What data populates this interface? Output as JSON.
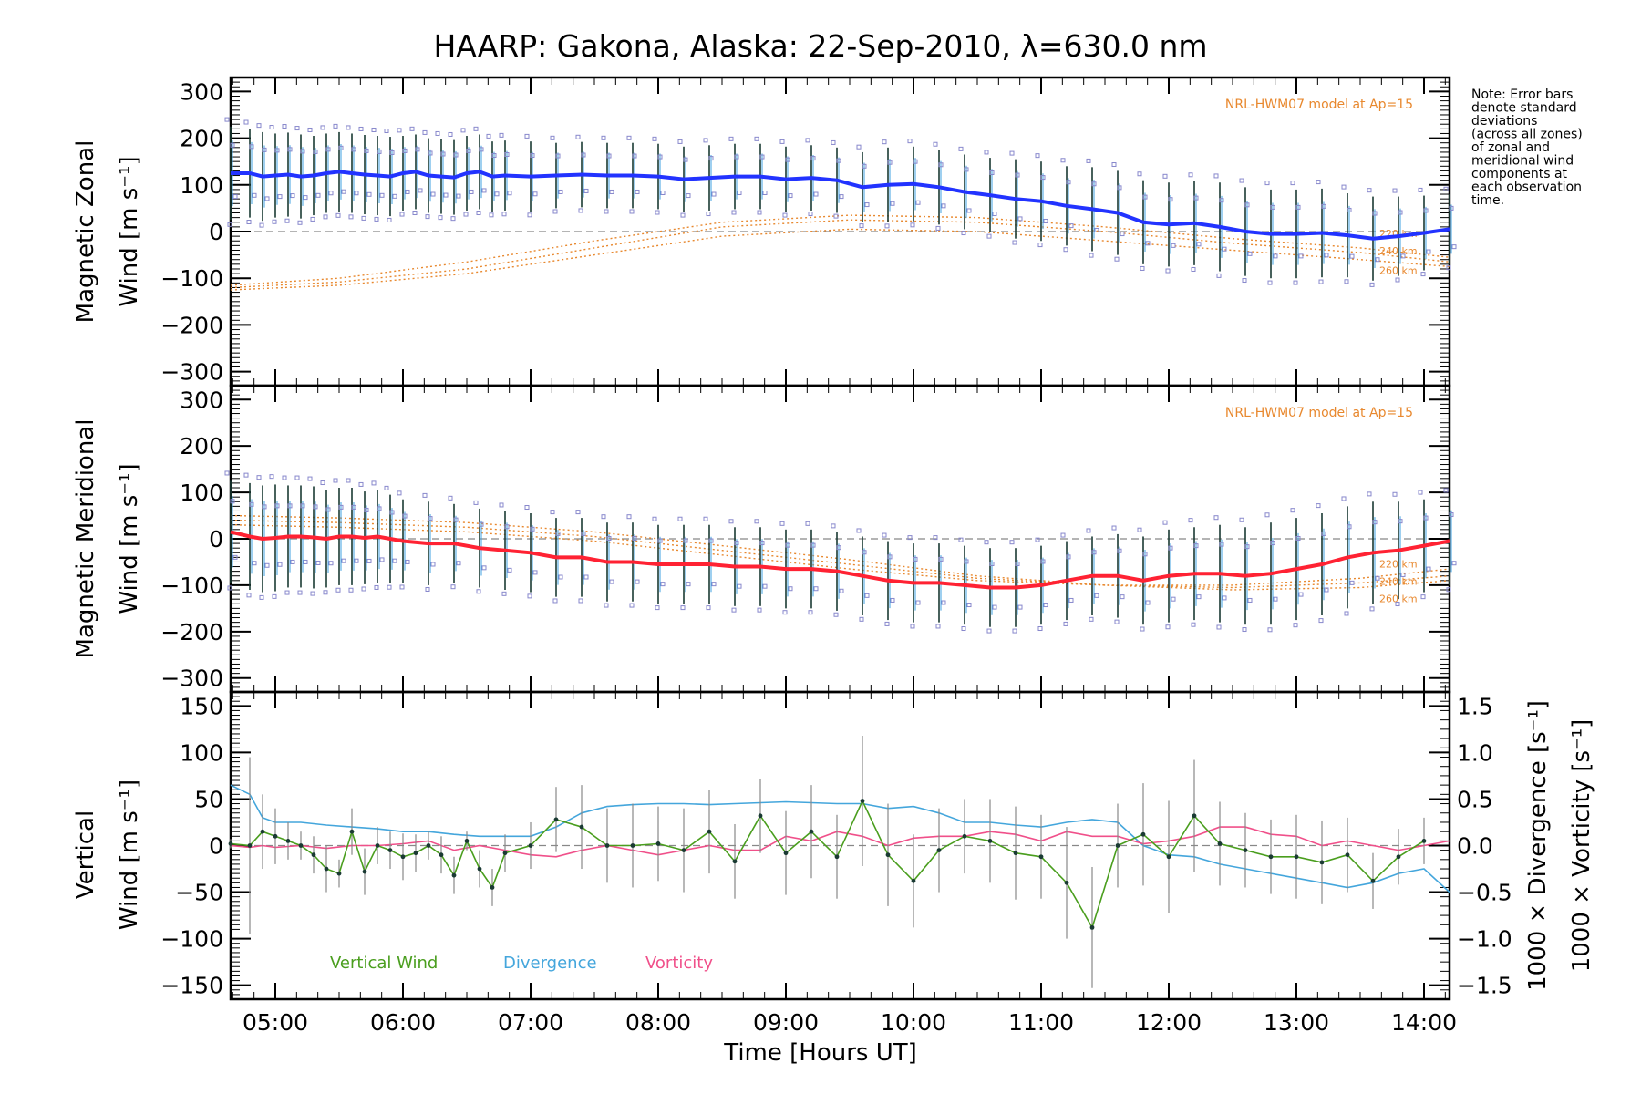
{
  "title": "HAARP: Gakona,  Alaska: 22-Sep-2010, λ=630.0 nm",
  "note": [
    "Note: Error bars",
    "denote standard",
    "deviations",
    "(across all zones)",
    "of zonal and",
    "meridional wind",
    "components at",
    "each observation",
    "time."
  ],
  "model_label": "NRL-HWM07 model at Ap=15",
  "model_alts": [
    "260 km",
    "240 km",
    "220 km"
  ],
  "xaxis": {
    "title": "Time [Hours UT]",
    "range_hours": [
      4.65,
      14.2
    ],
    "ticks": [
      5,
      6,
      7,
      8,
      9,
      10,
      11,
      12,
      13,
      14
    ],
    "tick_labels": [
      "05:00",
      "06:00",
      "07:00",
      "08:00",
      "09:00",
      "10:00",
      "11:00",
      "12:00",
      "13:00",
      "14:00"
    ]
  },
  "colors": {
    "zonal": "#2233ff",
    "meridional": "#ff2233",
    "vertical": "#4a9e1e",
    "divergence": "#44a6dc",
    "vorticity": "#f0508a",
    "model": "#e8882e",
    "zone_points": "#8888cc"
  },
  "panels": [
    {
      "id": "zonal",
      "ylabel_line1": "Magnetic Zonal",
      "ylabel_line2": "Wind [m s⁻¹]",
      "ylim": [
        -330,
        330
      ],
      "ticks": [
        300,
        200,
        100,
        0,
        -100,
        -200,
        -300
      ],
      "tick_labels": [
        "300",
        "200",
        "100",
        "0",
        "−100",
        "−200",
        "−300"
      ]
    },
    {
      "id": "meridional",
      "ylabel_line1": "Magnetic Meridional",
      "ylabel_line2": "Wind [m s⁻¹]",
      "ylim": [
        -330,
        330
      ],
      "ticks": [
        300,
        200,
        100,
        0,
        -100,
        -200,
        -300
      ],
      "tick_labels": [
        "300",
        "200",
        "100",
        "0",
        "−100",
        "−200",
        "−300"
      ]
    },
    {
      "id": "vertical",
      "ylabel_line1": "Vertical",
      "ylabel_line2": "Wind [m s⁻¹]",
      "ylim": [
        -165,
        165
      ],
      "ticks": [
        150,
        100,
        50,
        0,
        -50,
        -100,
        -150
      ],
      "tick_labels": [
        "150",
        "100",
        "50",
        "0",
        "−50",
        "−100",
        "−150"
      ],
      "right_ylim": [
        -1.65,
        1.65
      ],
      "right_ticks": [
        1.5,
        1.0,
        0.5,
        0.0,
        -0.5,
        -1.0,
        -1.5
      ],
      "right_tick_labels": [
        "1.5",
        "1.0",
        "0.5",
        "0.0",
        "−0.5",
        "−1.0",
        "−1.5"
      ],
      "right_label_div": "1000 × Divergence [s⁻¹]",
      "right_label_vort": "1000 × Vorticity [s⁻¹]",
      "legend": [
        "Vertical Wind",
        "Divergence",
        "Vorticity"
      ]
    }
  ],
  "chart_data": {
    "type": "line",
    "title": "HAARP: Gakona,  Alaska: 22-Sep-2010, λ=630.0 nm",
    "xlabel": "Time [Hours UT]",
    "zonal": {
      "ylabel": "Magnetic Zonal Wind [m s-1]",
      "x": [
        4.65,
        4.8,
        4.9,
        5.0,
        5.1,
        5.2,
        5.3,
        5.4,
        5.5,
        5.6,
        5.7,
        5.8,
        5.9,
        6.0,
        6.1,
        6.2,
        6.3,
        6.4,
        6.5,
        6.6,
        6.7,
        6.8,
        7.0,
        7.2,
        7.4,
        7.6,
        7.8,
        8.0,
        8.2,
        8.4,
        8.6,
        8.8,
        9.0,
        9.2,
        9.4,
        9.6,
        9.8,
        10.0,
        10.2,
        10.4,
        10.6,
        10.8,
        11.0,
        11.2,
        11.4,
        11.6,
        11.8,
        12.0,
        12.2,
        12.4,
        12.6,
        12.8,
        13.0,
        13.2,
        13.4,
        13.6,
        13.8,
        14.0,
        14.2
      ],
      "y": [
        125,
        125,
        118,
        120,
        122,
        118,
        120,
        125,
        128,
        125,
        122,
        120,
        118,
        125,
        128,
        120,
        118,
        116,
        125,
        128,
        118,
        120,
        118,
        120,
        122,
        120,
        120,
        118,
        112,
        115,
        118,
        118,
        112,
        115,
        110,
        95,
        100,
        102,
        95,
        85,
        78,
        70,
        65,
        55,
        48,
        40,
        20,
        15,
        18,
        10,
        0,
        -5,
        -5,
        -3,
        -8,
        -15,
        -10,
        -3,
        5
      ],
      "err": [
        100,
        95,
        95,
        90,
        90,
        90,
        85,
        85,
        85,
        85,
        85,
        85,
        85,
        80,
        80,
        80,
        80,
        80,
        80,
        80,
        75,
        75,
        75,
        70,
        70,
        70,
        70,
        70,
        70,
        70,
        70,
        70,
        70,
        70,
        70,
        75,
        80,
        80,
        80,
        80,
        80,
        85,
        85,
        85,
        90,
        90,
        90,
        90,
        90,
        95,
        95,
        95,
        95,
        95,
        90,
        90,
        85,
        80,
        75
      ]
    },
    "meridional": {
      "ylabel": "Magnetic Meridional Wind [m s-1]",
      "x": [
        4.65,
        4.8,
        4.9,
        5.0,
        5.1,
        5.2,
        5.3,
        5.4,
        5.5,
        5.6,
        5.7,
        5.8,
        5.9,
        6.0,
        6.2,
        6.4,
        6.6,
        6.8,
        7.0,
        7.2,
        7.4,
        7.6,
        7.8,
        8.0,
        8.2,
        8.4,
        8.6,
        8.8,
        9.0,
        9.2,
        9.4,
        9.6,
        9.8,
        10.0,
        10.2,
        10.4,
        10.6,
        10.8,
        11.0,
        11.2,
        11.4,
        11.6,
        11.8,
        12.0,
        12.2,
        12.4,
        12.6,
        12.8,
        13.0,
        13.2,
        13.4,
        13.6,
        13.8,
        14.0,
        14.2
      ],
      "y": [
        15,
        5,
        0,
        2,
        5,
        5,
        3,
        0,
        5,
        5,
        2,
        5,
        0,
        -5,
        -10,
        -10,
        -20,
        -25,
        -30,
        -40,
        -40,
        -50,
        -50,
        -55,
        -55,
        -55,
        -60,
        -60,
        -65,
        -65,
        -70,
        -80,
        -90,
        -95,
        -95,
        -100,
        -105,
        -105,
        -100,
        -90,
        -80,
        -80,
        -90,
        -80,
        -75,
        -75,
        -80,
        -75,
        -65,
        -55,
        -40,
        -30,
        -25,
        -15,
        -5
      ],
      "err": [
        110,
        115,
        115,
        115,
        110,
        110,
        110,
        105,
        105,
        105,
        100,
        100,
        95,
        90,
        90,
        85,
        85,
        85,
        85,
        85,
        85,
        85,
        85,
        85,
        85,
        85,
        85,
        85,
        85,
        85,
        85,
        85,
        85,
        85,
        85,
        85,
        85,
        85,
        85,
        85,
        85,
        90,
        95,
        100,
        100,
        105,
        105,
        110,
        110,
        110,
        110,
        110,
        105,
        100,
        95
      ]
    },
    "vertical": {
      "ylabel": "Vertical Wind [m s-1]",
      "x": [
        4.65,
        4.8,
        4.9,
        5.0,
        5.1,
        5.2,
        5.3,
        5.4,
        5.5,
        5.6,
        5.7,
        5.8,
        5.9,
        6.0,
        6.1,
        6.2,
        6.3,
        6.4,
        6.5,
        6.6,
        6.7,
        6.8,
        7.0,
        7.2,
        7.4,
        7.6,
        7.8,
        8.0,
        8.2,
        8.4,
        8.6,
        8.8,
        9.0,
        9.2,
        9.4,
        9.6,
        9.8,
        10.0,
        10.2,
        10.4,
        10.6,
        10.8,
        11.0,
        11.2,
        11.4,
        11.6,
        11.8,
        12.0,
        12.2,
        12.4,
        12.6,
        12.8,
        13.0,
        13.2,
        13.4,
        13.6,
        13.8,
        14.0
      ],
      "y": [
        2,
        0,
        15,
        10,
        5,
        0,
        -10,
        -25,
        -30,
        15,
        -28,
        0,
        -5,
        -12,
        -8,
        0,
        -10,
        -32,
        5,
        -25,
        -45,
        -8,
        0,
        28,
        20,
        0,
        0,
        2,
        -5,
        15,
        -17,
        32,
        -8,
        15,
        -12,
        48,
        -10,
        -38,
        -5,
        10,
        5,
        -8,
        -12,
        -40,
        -88,
        0,
        12,
        -12,
        32,
        2,
        -5,
        -12,
        -12,
        -18,
        -10,
        -38,
        -12,
        5
      ],
      "err": [
        5,
        95,
        40,
        30,
        20,
        15,
        20,
        25,
        15,
        25,
        25,
        20,
        20,
        25,
        20,
        15,
        20,
        20,
        10,
        20,
        20,
        20,
        25,
        35,
        45,
        40,
        45,
        40,
        45,
        45,
        40,
        40,
        45,
        50,
        45,
        70,
        55,
        50,
        45,
        40,
        45,
        50,
        45,
        60,
        65,
        45,
        55,
        60,
        60,
        45,
        40,
        40,
        45,
        45,
        40,
        30,
        30,
        25
      ],
      "divergence": {
        "x": [
          4.65,
          4.8,
          4.9,
          5.0,
          5.2,
          5.4,
          5.6,
          5.8,
          6.0,
          6.2,
          6.4,
          6.6,
          6.8,
          7.0,
          7.2,
          7.4,
          7.6,
          7.8,
          8.0,
          8.2,
          8.4,
          8.6,
          8.8,
          9.0,
          9.2,
          9.4,
          9.6,
          9.8,
          10.0,
          10.2,
          10.4,
          10.6,
          10.8,
          11.0,
          11.2,
          11.4,
          11.6,
          11.8,
          12.0,
          12.2,
          12.4,
          12.6,
          12.8,
          13.0,
          13.2,
          13.4,
          13.6,
          13.8,
          14.0,
          14.2
        ],
        "y": [
          0.65,
          0.55,
          0.3,
          0.25,
          0.25,
          0.22,
          0.2,
          0.18,
          0.15,
          0.15,
          0.12,
          0.1,
          0.1,
          0.1,
          0.2,
          0.35,
          0.42,
          0.44,
          0.45,
          0.45,
          0.44,
          0.45,
          0.46,
          0.47,
          0.46,
          0.45,
          0.45,
          0.4,
          0.42,
          0.35,
          0.25,
          0.25,
          0.22,
          0.2,
          0.25,
          0.28,
          0.25,
          0.0,
          -0.1,
          -0.12,
          -0.2,
          -0.25,
          -0.3,
          -0.35,
          -0.4,
          -0.45,
          -0.4,
          -0.3,
          -0.25,
          -0.5
        ]
      },
      "vorticity": {
        "x": [
          4.65,
          4.8,
          4.9,
          5.0,
          5.2,
          5.4,
          5.6,
          5.8,
          6.0,
          6.2,
          6.4,
          6.6,
          6.8,
          7.0,
          7.2,
          7.4,
          7.6,
          7.8,
          8.0,
          8.2,
          8.4,
          8.6,
          8.8,
          9.0,
          9.2,
          9.4,
          9.6,
          9.8,
          10.0,
          10.2,
          10.4,
          10.6,
          10.8,
          11.0,
          11.2,
          11.4,
          11.6,
          11.8,
          12.0,
          12.2,
          12.4,
          12.6,
          12.8,
          13.0,
          13.2,
          13.4,
          13.6,
          13.8,
          14.0,
          14.2
        ],
        "y": [
          0.0,
          -0.02,
          0.0,
          -0.02,
          0.0,
          -0.03,
          0.0,
          0.0,
          0.02,
          0.05,
          -0.05,
          0.0,
          -0.05,
          -0.1,
          -0.12,
          -0.05,
          0.0,
          -0.05,
          -0.1,
          -0.05,
          0.0,
          -0.05,
          -0.05,
          0.1,
          0.05,
          0.15,
          0.1,
          0.0,
          0.08,
          0.1,
          0.1,
          0.15,
          0.12,
          0.05,
          0.15,
          0.1,
          0.1,
          0.02,
          0.05,
          0.1,
          0.2,
          0.2,
          0.12,
          0.1,
          0.0,
          0.05,
          0.0,
          -0.05,
          0.0,
          0.05
        ]
      }
    },
    "model": {
      "zonal": [
        {
          "alt": "260 km",
          "x": [
            4.65,
            5.5,
            6.5,
            7.5,
            8.5,
            9.5,
            10.5,
            11.5,
            12.5,
            13.5,
            14.2
          ],
          "y": [
            -125,
            -115,
            -90,
            -50,
            -10,
            5,
            0,
            -20,
            -40,
            -60,
            -75
          ]
        },
        {
          "alt": "240 km",
          "x": [
            4.65,
            5.5,
            6.5,
            7.5,
            8.5,
            9.5,
            10.5,
            11.5,
            12.5,
            13.5,
            14.2
          ],
          "y": [
            -120,
            -108,
            -80,
            -35,
            10,
            25,
            20,
            0,
            -25,
            -45,
            -65
          ]
        },
        {
          "alt": "220 km",
          "x": [
            4.65,
            5.5,
            6.5,
            7.5,
            8.5,
            9.5,
            10.5,
            11.5,
            12.5,
            13.5,
            14.2
          ],
          "y": [
            -115,
            -100,
            -65,
            -20,
            20,
            35,
            30,
            10,
            -15,
            -35,
            -55
          ]
        }
      ],
      "meridional": [
        {
          "alt": "260 km",
          "x": [
            4.65,
            5.5,
            6.5,
            7.5,
            8.5,
            9.5,
            10.5,
            11.5,
            12.5,
            13.5,
            14.2
          ],
          "y": [
            50,
            45,
            35,
            15,
            -15,
            -45,
            -80,
            -100,
            -110,
            -105,
            -90
          ]
        },
        {
          "alt": "240 km",
          "x": [
            4.65,
            5.5,
            6.5,
            7.5,
            8.5,
            9.5,
            10.5,
            11.5,
            12.5,
            13.5,
            14.2
          ],
          "y": [
            40,
            35,
            25,
            5,
            -25,
            -55,
            -85,
            -100,
            -105,
            -95,
            -80
          ]
        },
        {
          "alt": "220 km",
          "x": [
            4.65,
            5.5,
            6.5,
            7.5,
            8.5,
            9.5,
            10.5,
            11.5,
            12.5,
            13.5,
            14.2
          ],
          "y": [
            30,
            25,
            15,
            -5,
            -35,
            -65,
            -90,
            -100,
            -100,
            -85,
            -65
          ]
        }
      ]
    }
  }
}
